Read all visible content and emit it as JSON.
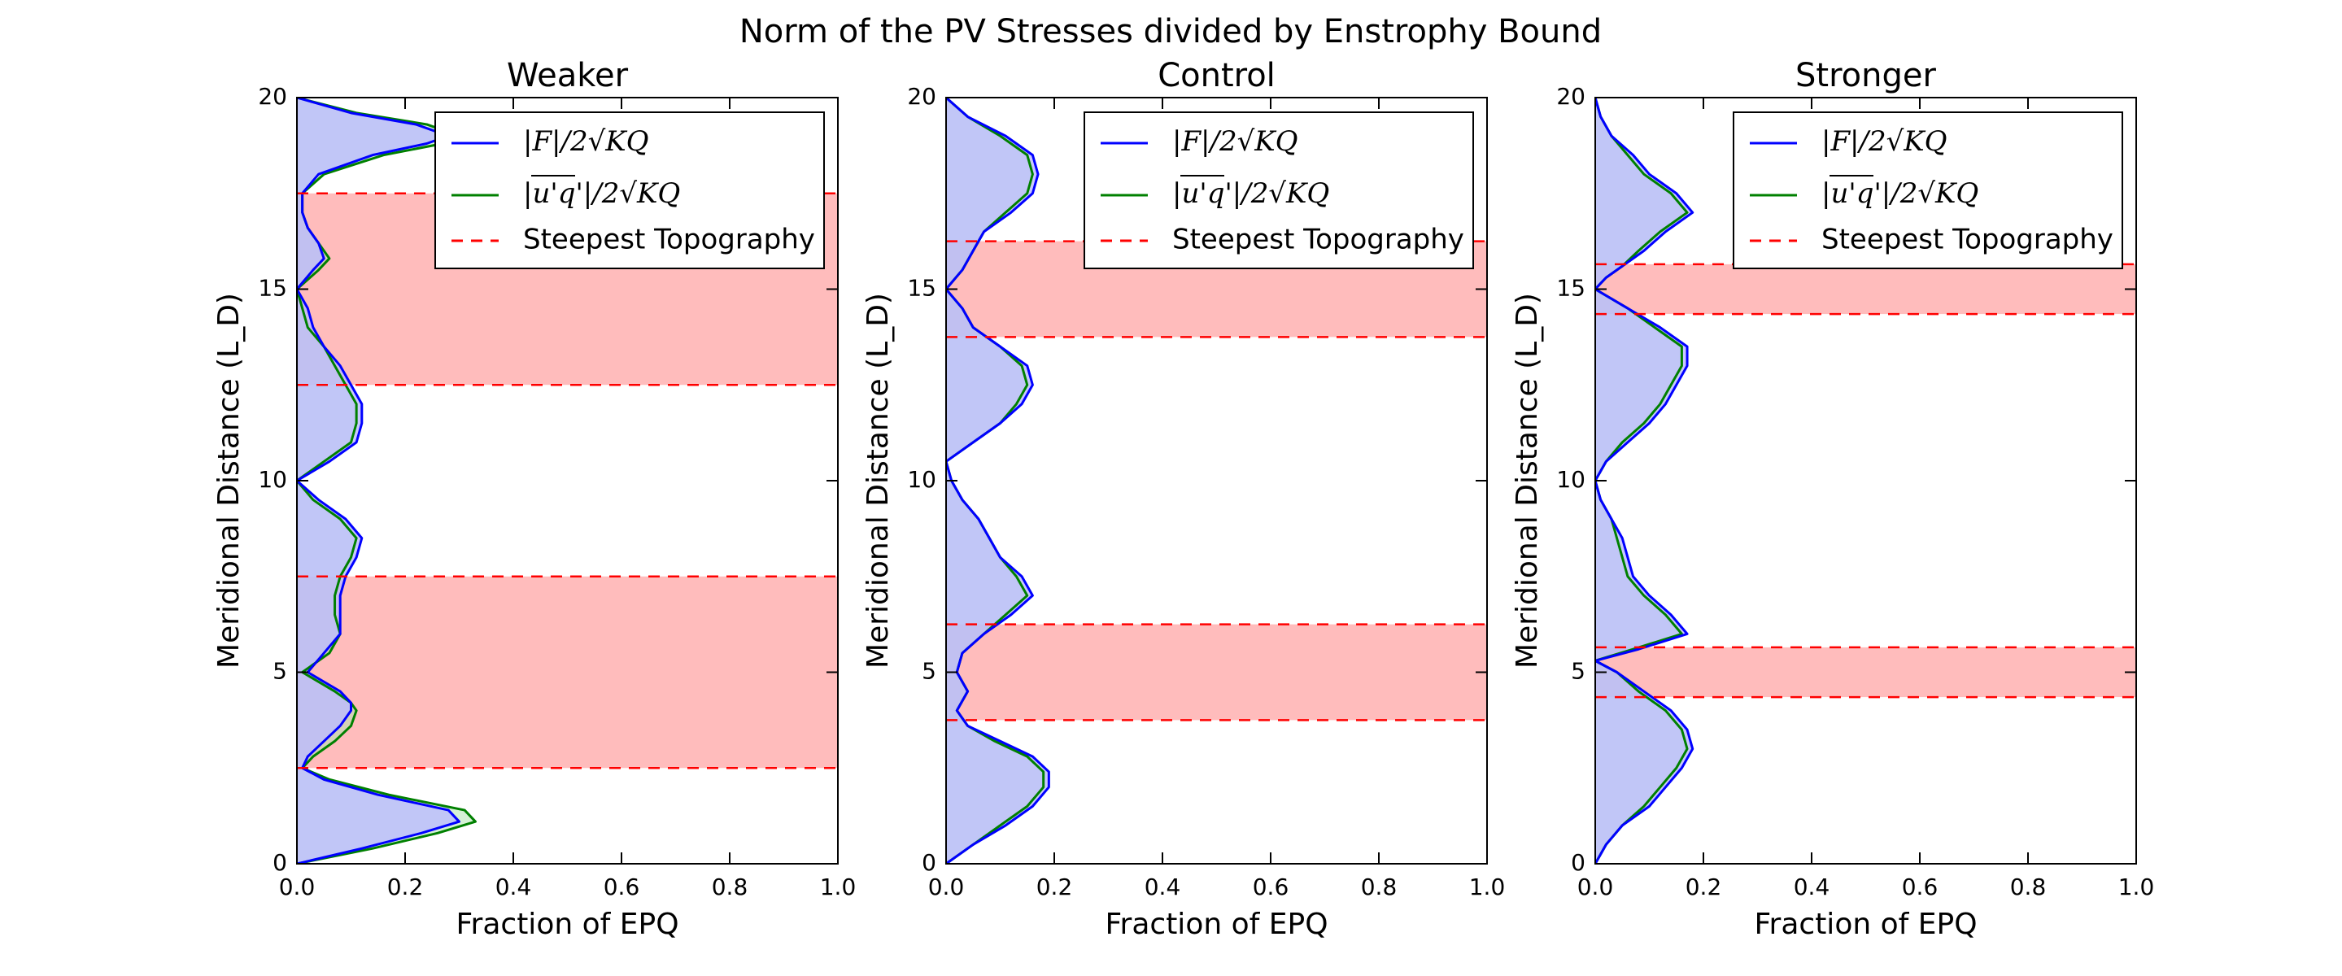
{
  "figure": {
    "title": "Norm of the PV Stresses divided by Enstrophy Bound",
    "colors": {
      "flux_line": "#0000ff",
      "flux_fill": "#bcbcff",
      "eddy_line": "#008000",
      "eddy_fill": "#b3e6b3",
      "topo_line": "#ff0000",
      "topo_fill": "#ffbcbc"
    }
  },
  "chart_data": [
    {
      "type": "area",
      "title": "Weaker",
      "xlabel": "Fraction of EPQ",
      "ylabel": "Meridional Distance (L_D)",
      "xlim": [
        0,
        1
      ],
      "ylim": [
        0,
        20
      ],
      "xticks": [
        "0.0",
        "0.2",
        "0.4",
        "0.6",
        "0.8",
        "1.0"
      ],
      "yticks": [
        "0",
        "5",
        "10",
        "15",
        "20"
      ],
      "grid": false,
      "legend_location": "upper right",
      "legend": [
        {
          "label": "|F|/2√KQ",
          "style": "solid",
          "color": "blue"
        },
        {
          "label": "|u'q'|/2√KQ",
          "style": "solid",
          "color": "green"
        },
        {
          "label": "Steepest Topography",
          "style": "dashed",
          "color": "red"
        }
      ],
      "topography_bands": [
        [
          2.5,
          7.5
        ],
        [
          12.5,
          17.5
        ]
      ],
      "y": [
        0,
        0.4,
        0.8,
        1.1,
        1.4,
        1.8,
        2.2,
        2.5,
        2.8,
        3.2,
        3.6,
        4.0,
        4.2,
        4.5,
        5.0,
        5.5,
        6.0,
        6.5,
        7.0,
        7.5,
        8.0,
        8.5,
        9.0,
        9.5,
        10.0,
        10.5,
        11.0,
        11.5,
        12.0,
        12.5,
        13.0,
        13.5,
        14.0,
        14.5,
        15.0,
        15.5,
        15.8,
        16.2,
        16.6,
        17.0,
        17.5,
        18.0,
        18.5,
        18.8,
        19.0,
        19.3,
        19.6,
        20.0
      ],
      "series": [
        {
          "name": "|F|/2√KQ",
          "values": [
            0.0,
            0.12,
            0.23,
            0.3,
            0.28,
            0.15,
            0.05,
            0.01,
            0.02,
            0.05,
            0.08,
            0.1,
            0.1,
            0.08,
            0.02,
            0.05,
            0.08,
            0.08,
            0.08,
            0.09,
            0.11,
            0.12,
            0.09,
            0.04,
            0.0,
            0.06,
            0.11,
            0.12,
            0.12,
            0.1,
            0.08,
            0.05,
            0.03,
            0.02,
            0.0,
            0.03,
            0.05,
            0.04,
            0.02,
            0.01,
            0.01,
            0.04,
            0.14,
            0.24,
            0.28,
            0.22,
            0.1,
            0.0
          ]
        },
        {
          "name": "|u'q'|/2√KQ",
          "values": [
            0.0,
            0.14,
            0.26,
            0.33,
            0.31,
            0.17,
            0.06,
            0.01,
            0.03,
            0.07,
            0.1,
            0.11,
            0.1,
            0.07,
            0.01,
            0.06,
            0.08,
            0.07,
            0.07,
            0.08,
            0.1,
            0.11,
            0.08,
            0.03,
            0.0,
            0.05,
            0.1,
            0.11,
            0.11,
            0.09,
            0.07,
            0.05,
            0.02,
            0.01,
            0.0,
            0.04,
            0.06,
            0.04,
            0.02,
            0.01,
            0.01,
            0.05,
            0.16,
            0.27,
            0.3,
            0.24,
            0.11,
            0.0
          ]
        }
      ]
    },
    {
      "type": "area",
      "title": "Control",
      "xlabel": "Fraction of EPQ",
      "ylabel": "Meridional Distance (L_D)",
      "xlim": [
        0,
        1
      ],
      "ylim": [
        0,
        20
      ],
      "xticks": [
        "0.0",
        "0.2",
        "0.4",
        "0.6",
        "0.8",
        "1.0"
      ],
      "yticks": [
        "0",
        "5",
        "10",
        "15",
        "20"
      ],
      "grid": false,
      "legend_location": "upper right",
      "legend": [
        {
          "label": "|F|/2√KQ",
          "style": "solid",
          "color": "blue"
        },
        {
          "label": "|u'q'|/2√KQ",
          "style": "solid",
          "color": "green"
        },
        {
          "label": "Steepest Topography",
          "style": "dashed",
          "color": "red"
        }
      ],
      "topography_bands": [
        [
          3.75,
          6.25
        ],
        [
          13.75,
          16.25
        ]
      ],
      "y": [
        0,
        0.5,
        1.0,
        1.5,
        2.0,
        2.4,
        2.8,
        3.2,
        3.6,
        4.0,
        4.5,
        5.0,
        5.5,
        6.0,
        6.5,
        7.0,
        7.5,
        8.0,
        8.5,
        9.0,
        9.5,
        10.0,
        10.5,
        11.0,
        11.5,
        12.0,
        12.5,
        13.0,
        13.5,
        14.0,
        14.5,
        15.0,
        15.5,
        16.0,
        16.5,
        17.0,
        17.5,
        18.0,
        18.5,
        19.0,
        19.5,
        20.0
      ],
      "series": [
        {
          "name": "|F|/2√KQ",
          "values": [
            0.0,
            0.05,
            0.11,
            0.16,
            0.19,
            0.19,
            0.16,
            0.1,
            0.04,
            0.02,
            0.04,
            0.02,
            0.03,
            0.07,
            0.12,
            0.16,
            0.14,
            0.1,
            0.08,
            0.06,
            0.03,
            0.01,
            0.0,
            0.05,
            0.1,
            0.14,
            0.16,
            0.15,
            0.1,
            0.05,
            0.03,
            0.0,
            0.03,
            0.05,
            0.07,
            0.12,
            0.16,
            0.17,
            0.16,
            0.11,
            0.04,
            0.0
          ]
        },
        {
          "name": "|u'q'|/2√KQ",
          "values": [
            0.0,
            0.05,
            0.1,
            0.15,
            0.18,
            0.18,
            0.15,
            0.09,
            0.04,
            0.02,
            0.04,
            0.02,
            0.03,
            0.07,
            0.11,
            0.15,
            0.13,
            0.1,
            0.08,
            0.06,
            0.03,
            0.01,
            0.0,
            0.05,
            0.1,
            0.13,
            0.15,
            0.14,
            0.1,
            0.05,
            0.03,
            0.0,
            0.03,
            0.05,
            0.07,
            0.11,
            0.15,
            0.16,
            0.15,
            0.1,
            0.04,
            0.0
          ]
        }
      ]
    },
    {
      "type": "area",
      "title": "Stronger",
      "xlabel": "Fraction of EPQ",
      "ylabel": "Meridional Distance (L_D)",
      "xlim": [
        0,
        1
      ],
      "ylim": [
        0,
        20
      ],
      "xticks": [
        "0.0",
        "0.2",
        "0.4",
        "0.6",
        "0.8",
        "1.0"
      ],
      "yticks": [
        "0",
        "5",
        "10",
        "15",
        "20"
      ],
      "grid": false,
      "legend_location": "upper right",
      "legend": [
        {
          "label": "|F|/2√KQ",
          "style": "solid",
          "color": "blue"
        },
        {
          "label": "|u'q'|/2√KQ",
          "style": "solid",
          "color": "green"
        },
        {
          "label": "Steepest Topography",
          "style": "dashed",
          "color": "red"
        }
      ],
      "topography_bands": [
        [
          4.35,
          5.65
        ],
        [
          14.35,
          15.65
        ]
      ],
      "y": [
        0,
        0.5,
        1.0,
        1.5,
        2.0,
        2.5,
        3.0,
        3.5,
        4.0,
        4.5,
        5.0,
        5.3,
        5.6,
        6.0,
        6.5,
        7.0,
        7.5,
        8.0,
        8.5,
        9.0,
        9.5,
        10.0,
        10.5,
        11.0,
        11.5,
        12.0,
        12.5,
        13.0,
        13.5,
        14.0,
        14.5,
        15.0,
        15.3,
        15.6,
        16.0,
        16.5,
        17.0,
        17.5,
        18.0,
        18.5,
        19.0,
        19.5,
        20.0
      ],
      "series": [
        {
          "name": "|F|/2√KQ",
          "values": [
            0.0,
            0.02,
            0.05,
            0.1,
            0.13,
            0.16,
            0.18,
            0.17,
            0.14,
            0.09,
            0.04,
            0.0,
            0.08,
            0.17,
            0.14,
            0.1,
            0.07,
            0.06,
            0.05,
            0.03,
            0.01,
            0.0,
            0.02,
            0.06,
            0.1,
            0.13,
            0.15,
            0.17,
            0.17,
            0.12,
            0.06,
            0.0,
            0.02,
            0.05,
            0.09,
            0.13,
            0.18,
            0.15,
            0.1,
            0.07,
            0.03,
            0.01,
            0.0
          ]
        },
        {
          "name": "|u'q'|/2√KQ",
          "values": [
            0.0,
            0.02,
            0.05,
            0.09,
            0.12,
            0.15,
            0.17,
            0.16,
            0.13,
            0.08,
            0.04,
            0.0,
            0.07,
            0.16,
            0.13,
            0.09,
            0.06,
            0.05,
            0.04,
            0.03,
            0.01,
            0.0,
            0.02,
            0.05,
            0.09,
            0.12,
            0.14,
            0.16,
            0.16,
            0.11,
            0.06,
            0.0,
            0.02,
            0.05,
            0.08,
            0.12,
            0.17,
            0.14,
            0.09,
            0.06,
            0.03,
            0.01,
            0.0
          ]
        }
      ]
    }
  ]
}
